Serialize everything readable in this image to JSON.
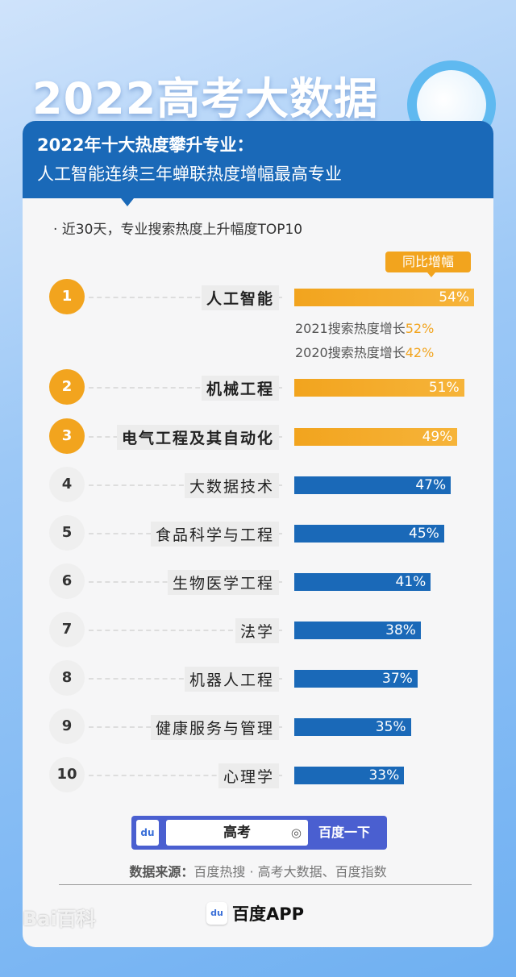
{
  "title": "2022高考大数据",
  "header": {
    "line1": "2022年十大热度攀升专业：",
    "line2": "人工智能连续三年蝉联热度增幅最高专业"
  },
  "subtitle": "· 近30天，专业搜索热度上升幅度TOP10",
  "chart_data": {
    "type": "bar",
    "orientation": "horizontal",
    "legend": "同比增幅",
    "categories": [
      "人工智能",
      "机械工程",
      "电气工程及其自动化",
      "大数据技术",
      "食品科学与工程",
      "生物医学工程",
      "法学",
      "机器人工程",
      "健康服务与管理",
      "心理学"
    ],
    "ranks": [
      "1",
      "2",
      "3",
      "4",
      "5",
      "6",
      "7",
      "8",
      "9",
      "10"
    ],
    "values": [
      54,
      51,
      49,
      47,
      45,
      41,
      38,
      37,
      35,
      33
    ],
    "labels": [
      "54%",
      "51%",
      "49%",
      "47%",
      "45%",
      "41%",
      "38%",
      "37%",
      "35%",
      "33%"
    ],
    "annotations": [
      {
        "text": "2021搜索热度增长",
        "value": "52%"
      },
      {
        "text": "2020搜索热度增长",
        "value": "42%"
      }
    ],
    "colors": {
      "top3": "#f2a41e",
      "rest": "#1a69b8"
    }
  },
  "search": {
    "query": "高考",
    "button": "百度一下",
    "logo": "du"
  },
  "source": {
    "label": "数据来源：",
    "text": "百度热搜 · 高考大数据、百度指数"
  },
  "app": {
    "name": "百度APP",
    "icon": "du"
  },
  "watermark": "Bai百科"
}
